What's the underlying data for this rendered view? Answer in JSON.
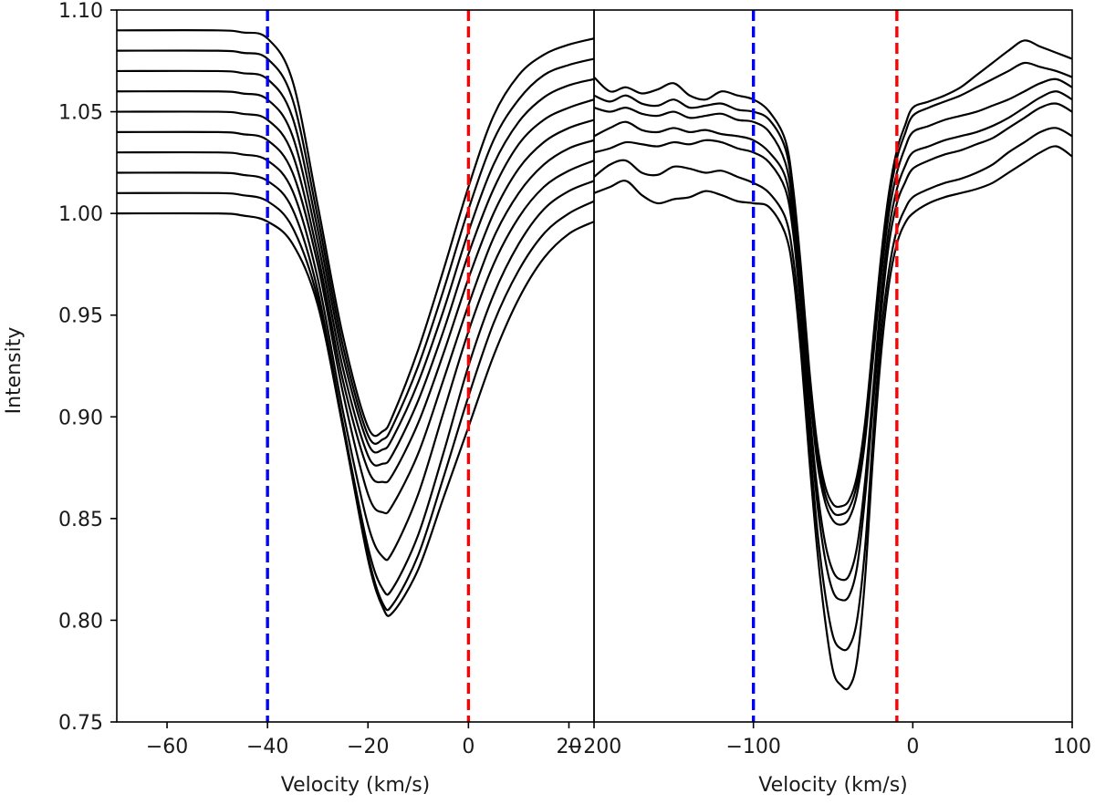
{
  "chart_data": [
    {
      "type": "line",
      "panel": "left",
      "xlabel": "Velocity (km/s)",
      "ylabel": "Intensity",
      "xlim": [
        -70,
        25
      ],
      "ylim": [
        0.75,
        1.1
      ],
      "xticks": [
        -60,
        -40,
        -20,
        0,
        20
      ],
      "xtick_labels": [
        "−60",
        "−40",
        "−20",
        "0",
        "20"
      ],
      "yticks": [
        0.75,
        0.8,
        0.85,
        0.9,
        0.95,
        1.0,
        1.05,
        1.1
      ],
      "ytick_labels": [
        "0.75",
        "0.80",
        "0.85",
        "0.90",
        "0.95",
        "1.00",
        "1.05",
        "1.10"
      ],
      "grid": false,
      "vertical_lines": [
        {
          "x": -40,
          "color": "#0000ff",
          "style": "dashed"
        },
        {
          "x": 0,
          "color": "#ff0000",
          "style": "dashed"
        }
      ],
      "series": [
        {
          "offset": 0.0,
          "min": 0.804,
          "x": [
            -70,
            -50,
            -45,
            -40,
            -35,
            -30,
            -25,
            -20,
            -17,
            -15,
            -10,
            -5,
            0,
            5,
            10,
            15,
            20,
            25
          ],
          "y": [
            1.0,
            1.0,
            0.999,
            0.996,
            0.985,
            0.955,
            0.895,
            0.83,
            0.806,
            0.804,
            0.825,
            0.86,
            0.895,
            0.93,
            0.958,
            0.978,
            0.99,
            0.996
          ]
        },
        {
          "offset": 0.01,
          "min": 0.806,
          "x": [
            -70,
            -50,
            -45,
            -40,
            -35,
            -30,
            -25,
            -20,
            -17,
            -15,
            -10,
            -5,
            0,
            5,
            10,
            15,
            20,
            25
          ],
          "y": [
            1.01,
            1.01,
            1.009,
            1.006,
            0.993,
            0.958,
            0.895,
            0.832,
            0.808,
            0.808,
            0.832,
            0.87,
            0.91,
            0.946,
            0.972,
            0.99,
            1.0,
            1.006
          ]
        },
        {
          "offset": 0.02,
          "min": 0.813,
          "x": [
            -70,
            -50,
            -45,
            -40,
            -35,
            -30,
            -25,
            -20,
            -17,
            -15,
            -10,
            -5,
            0,
            5,
            10,
            15,
            20,
            25
          ],
          "y": [
            1.02,
            1.02,
            1.019,
            1.016,
            1.002,
            0.962,
            0.897,
            0.836,
            0.815,
            0.816,
            0.842,
            0.882,
            0.925,
            0.96,
            0.985,
            1.002,
            1.011,
            1.016
          ]
        },
        {
          "offset": 0.03,
          "min": 0.83,
          "x": [
            -70,
            -50,
            -45,
            -40,
            -35,
            -30,
            -25,
            -20,
            -17,
            -15,
            -10,
            -5,
            0,
            5,
            10,
            15,
            20,
            25
          ],
          "y": [
            1.03,
            1.03,
            1.029,
            1.026,
            1.011,
            0.968,
            0.903,
            0.847,
            0.831,
            0.834,
            0.862,
            0.902,
            0.942,
            0.975,
            0.998,
            1.013,
            1.021,
            1.026
          ]
        },
        {
          "offset": 0.04,
          "min": 0.853,
          "x": [
            -70,
            -50,
            -45,
            -40,
            -35,
            -30,
            -25,
            -20,
            -17,
            -15,
            -10,
            -5,
            0,
            5,
            10,
            15,
            20,
            25
          ],
          "y": [
            1.04,
            1.04,
            1.039,
            1.036,
            1.02,
            0.975,
            0.912,
            0.862,
            0.853,
            0.857,
            0.882,
            0.918,
            0.955,
            0.988,
            1.01,
            1.024,
            1.032,
            1.036
          ]
        },
        {
          "offset": 0.05,
          "min": 0.868,
          "x": [
            -70,
            -50,
            -45,
            -40,
            -35,
            -30,
            -25,
            -20,
            -17,
            -15,
            -10,
            -5,
            0,
            5,
            10,
            15,
            20,
            25
          ],
          "y": [
            1.05,
            1.05,
            1.049,
            1.046,
            1.029,
            0.98,
            0.918,
            0.874,
            0.868,
            0.872,
            0.897,
            0.931,
            0.968,
            1.0,
            1.022,
            1.035,
            1.042,
            1.046
          ]
        },
        {
          "offset": 0.06,
          "min": 0.876,
          "x": [
            -70,
            -50,
            -45,
            -40,
            -35,
            -30,
            -25,
            -20,
            -17,
            -15,
            -10,
            -5,
            0,
            5,
            10,
            15,
            20,
            25
          ],
          "y": [
            1.06,
            1.06,
            1.059,
            1.056,
            1.038,
            0.986,
            0.924,
            0.881,
            0.877,
            0.882,
            0.908,
            0.942,
            0.98,
            1.012,
            1.034,
            1.046,
            1.052,
            1.056
          ]
        },
        {
          "offset": 0.07,
          "min": 0.883,
          "x": [
            -70,
            -50,
            -45,
            -40,
            -35,
            -30,
            -25,
            -20,
            -17,
            -15,
            -10,
            -5,
            0,
            5,
            10,
            15,
            20,
            25
          ],
          "y": [
            1.07,
            1.07,
            1.069,
            1.066,
            1.047,
            0.992,
            0.93,
            0.887,
            0.884,
            0.89,
            0.917,
            0.952,
            0.991,
            1.024,
            1.045,
            1.057,
            1.063,
            1.066
          ]
        },
        {
          "offset": 0.08,
          "min": 0.888,
          "x": [
            -70,
            -50,
            -45,
            -40,
            -35,
            -30,
            -25,
            -20,
            -17,
            -15,
            -10,
            -5,
            0,
            5,
            10,
            15,
            20,
            25
          ],
          "y": [
            1.08,
            1.08,
            1.079,
            1.076,
            1.056,
            0.998,
            0.935,
            0.891,
            0.889,
            0.896,
            0.925,
            0.962,
            1.002,
            1.036,
            1.056,
            1.068,
            1.073,
            1.076
          ]
        },
        {
          "offset": 0.09,
          "min": 0.892,
          "x": [
            -70,
            -50,
            -45,
            -40,
            -35,
            -30,
            -25,
            -20,
            -17,
            -15,
            -10,
            -5,
            0,
            5,
            10,
            15,
            20,
            25
          ],
          "y": [
            1.09,
            1.09,
            1.089,
            1.086,
            1.065,
            1.004,
            0.94,
            0.895,
            0.893,
            0.901,
            0.933,
            0.972,
            1.013,
            1.048,
            1.068,
            1.078,
            1.083,
            1.086
          ]
        }
      ]
    },
    {
      "type": "line",
      "panel": "right",
      "xlabel": "Velocity (km/s)",
      "ylabel": "",
      "xlim": [
        -200,
        100
      ],
      "ylim": [
        0.75,
        1.1
      ],
      "xticks": [
        -200,
        -100,
        0,
        100
      ],
      "xtick_labels": [
        "−200",
        "−100",
        "0",
        "100"
      ],
      "grid": false,
      "vertical_lines": [
        {
          "x": -100,
          "color": "#0000ff",
          "style": "dashed"
        },
        {
          "x": -10,
          "color": "#ff0000",
          "style": "dashed"
        }
      ],
      "series": [
        {
          "min": 0.766,
          "x": [
            -200,
            -190,
            -180,
            -170,
            -160,
            -150,
            -140,
            -130,
            -120,
            -110,
            -100,
            -90,
            -80,
            -75,
            -70,
            -65,
            -60,
            -55,
            -50,
            -45,
            -40,
            -35,
            -30,
            -25,
            -20,
            -15,
            -10,
            -5,
            0,
            10,
            20,
            30,
            40,
            50,
            60,
            70,
            80,
            90,
            100
          ],
          "y": [
            1.01,
            1.013,
            1.016,
            1.009,
            1.005,
            1.007,
            1.008,
            1.011,
            1.009,
            1.006,
            1.005,
            1.003,
            0.99,
            0.97,
            0.93,
            0.88,
            0.835,
            0.8,
            0.775,
            0.768,
            0.767,
            0.78,
            0.82,
            0.88,
            0.93,
            0.965,
            0.985,
            0.995,
            1.0,
            1.005,
            1.008,
            1.01,
            1.012,
            1.015,
            1.02,
            1.025,
            1.03,
            1.033,
            1.028
          ]
        },
        {
          "min": 0.785,
          "x": [
            -200,
            -190,
            -180,
            -170,
            -160,
            -150,
            -140,
            -130,
            -120,
            -110,
            -100,
            -90,
            -80,
            -75,
            -70,
            -65,
            -60,
            -55,
            -50,
            -45,
            -40,
            -35,
            -30,
            -25,
            -20,
            -15,
            -10,
            -5,
            0,
            10,
            20,
            30,
            40,
            50,
            60,
            70,
            80,
            90,
            100
          ],
          "y": [
            1.018,
            1.024,
            1.026,
            1.02,
            1.019,
            1.023,
            1.022,
            1.02,
            1.021,
            1.018,
            1.015,
            1.01,
            0.998,
            0.978,
            0.94,
            0.89,
            0.845,
            0.813,
            0.792,
            0.786,
            0.787,
            0.8,
            0.835,
            0.89,
            0.94,
            0.972,
            0.992,
            1.002,
            1.008,
            1.012,
            1.015,
            1.017,
            1.02,
            1.024,
            1.03,
            1.035,
            1.04,
            1.042,
            1.038
          ]
        },
        {
          "min": 0.81,
          "x": [
            -200,
            -190,
            -180,
            -170,
            -160,
            -150,
            -140,
            -130,
            -120,
            -110,
            -100,
            -90,
            -80,
            -75,
            -70,
            -65,
            -60,
            -55,
            -50,
            -45,
            -40,
            -35,
            -30,
            -25,
            -20,
            -15,
            -10,
            -5,
            0,
            10,
            20,
            30,
            40,
            50,
            60,
            70,
            80,
            90,
            100
          ],
          "y": [
            1.03,
            1.032,
            1.035,
            1.034,
            1.033,
            1.035,
            1.034,
            1.036,
            1.035,
            1.032,
            1.03,
            1.025,
            1.012,
            0.99,
            0.95,
            0.9,
            0.858,
            0.83,
            0.814,
            0.81,
            0.812,
            0.826,
            0.86,
            0.905,
            0.95,
            0.985,
            1.005,
            1.015,
            1.022,
            1.026,
            1.029,
            1.031,
            1.034,
            1.037,
            1.042,
            1.047,
            1.052,
            1.054,
            1.05
          ]
        },
        {
          "min": 0.82,
          "x": [
            -200,
            -190,
            -180,
            -170,
            -160,
            -150,
            -140,
            -130,
            -120,
            -110,
            -100,
            -90,
            -80,
            -75,
            -70,
            -65,
            -60,
            -55,
            -50,
            -45,
            -40,
            -35,
            -30,
            -25,
            -20,
            -15,
            -10,
            -5,
            0,
            10,
            20,
            30,
            40,
            50,
            60,
            70,
            80,
            90,
            100
          ],
          "y": [
            1.038,
            1.042,
            1.045,
            1.041,
            1.04,
            1.042,
            1.04,
            1.041,
            1.039,
            1.038,
            1.036,
            1.03,
            1.018,
            0.995,
            0.955,
            0.905,
            0.865,
            0.838,
            0.824,
            0.82,
            0.822,
            0.836,
            0.868,
            0.912,
            0.958,
            0.992,
            1.012,
            1.023,
            1.03,
            1.033,
            1.036,
            1.038,
            1.04,
            1.043,
            1.047,
            1.052,
            1.057,
            1.06,
            1.056
          ]
        },
        {
          "min": 0.847,
          "x": [
            -200,
            -190,
            -180,
            -170,
            -160,
            -150,
            -140,
            -130,
            -120,
            -110,
            -100,
            -90,
            -80,
            -75,
            -70,
            -65,
            -60,
            -55,
            -50,
            -45,
            -40,
            -35,
            -30,
            -25,
            -20,
            -15,
            -10,
            -5,
            0,
            10,
            20,
            30,
            40,
            50,
            60,
            70,
            80,
            90,
            100
          ],
          "y": [
            1.052,
            1.05,
            1.052,
            1.049,
            1.048,
            1.05,
            1.047,
            1.048,
            1.049,
            1.046,
            1.045,
            1.04,
            1.025,
            1.002,
            0.962,
            0.915,
            0.878,
            0.858,
            0.849,
            0.847,
            0.85,
            0.862,
            0.888,
            0.928,
            0.968,
            1.0,
            1.02,
            1.032,
            1.04,
            1.043,
            1.046,
            1.048,
            1.05,
            1.053,
            1.056,
            1.06,
            1.064,
            1.066,
            1.062
          ]
        },
        {
          "min": 0.852,
          "x": [
            -200,
            -190,
            -180,
            -170,
            -160,
            -150,
            -140,
            -130,
            -120,
            -110,
            -100,
            -90,
            -80,
            -75,
            -70,
            -65,
            -60,
            -55,
            -50,
            -45,
            -40,
            -35,
            -30,
            -25,
            -20,
            -15,
            -10,
            -5,
            0,
            10,
            20,
            30,
            40,
            50,
            60,
            70,
            80,
            90,
            100
          ],
          "y": [
            1.058,
            1.055,
            1.058,
            1.054,
            1.053,
            1.056,
            1.052,
            1.053,
            1.054,
            1.051,
            1.05,
            1.046,
            1.032,
            1.008,
            0.968,
            0.92,
            0.883,
            0.862,
            0.853,
            0.852,
            0.855,
            0.867,
            0.893,
            0.933,
            0.974,
            1.006,
            1.027,
            1.039,
            1.048,
            1.052,
            1.055,
            1.058,
            1.062,
            1.066,
            1.07,
            1.074,
            1.072,
            1.07,
            1.067
          ]
        },
        {
          "min": 0.856,
          "x": [
            -200,
            -190,
            -180,
            -170,
            -160,
            -150,
            -140,
            -130,
            -120,
            -110,
            -100,
            -90,
            -80,
            -75,
            -70,
            -65,
            -60,
            -55,
            -50,
            -45,
            -40,
            -35,
            -30,
            -25,
            -20,
            -15,
            -10,
            -5,
            0,
            10,
            20,
            30,
            40,
            50,
            60,
            70,
            80,
            90,
            100
          ],
          "y": [
            1.067,
            1.06,
            1.062,
            1.059,
            1.061,
            1.064,
            1.058,
            1.056,
            1.06,
            1.058,
            1.056,
            1.05,
            1.036,
            1.012,
            0.972,
            0.924,
            0.887,
            0.866,
            0.857,
            0.856,
            0.859,
            0.871,
            0.897,
            0.937,
            0.978,
            1.01,
            1.031,
            1.043,
            1.052,
            1.055,
            1.058,
            1.062,
            1.068,
            1.074,
            1.08,
            1.085,
            1.082,
            1.079,
            1.076
          ]
        }
      ]
    }
  ]
}
